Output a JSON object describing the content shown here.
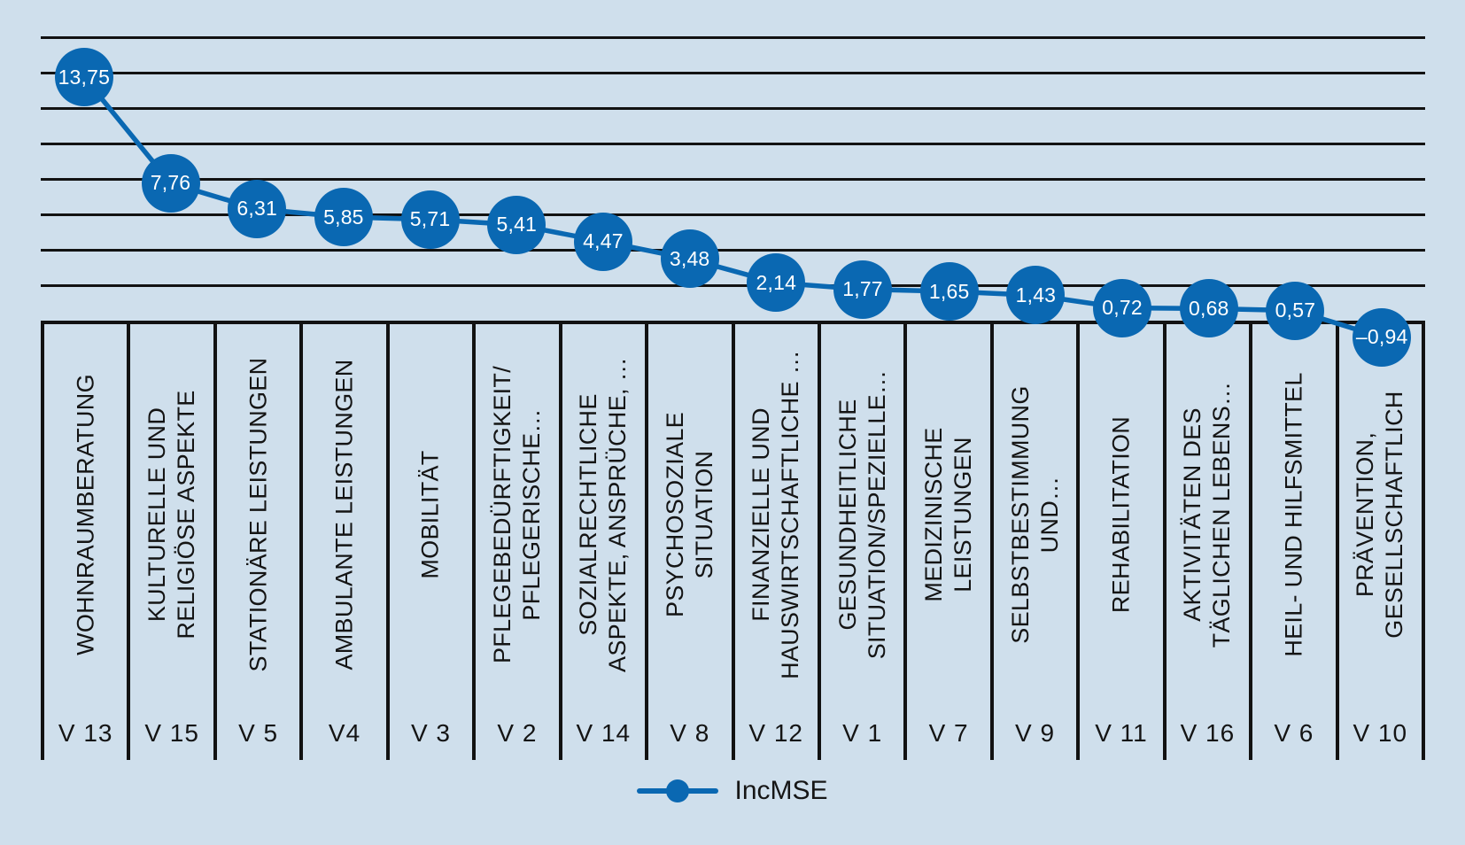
{
  "figure": {
    "background_color": "#cfdfec",
    "series_color": "#0a68b2",
    "grid_color": "#121212",
    "marker_text_color": "#ffffff"
  },
  "legend": {
    "label": "IncMSE",
    "position": "bottom-center"
  },
  "chart_data": {
    "type": "line",
    "title": "",
    "xlabel": "",
    "ylabel": "",
    "ylim": [
      0,
      16
    ],
    "gridline_step": 2,
    "grid": true,
    "legend_position": "bottom-center",
    "marker_style": "filled-circle-with-value-label",
    "decimal_separator": ",",
    "series": [
      {
        "name": "IncMSE",
        "values": [
          13.75,
          7.76,
          6.31,
          5.85,
          5.71,
          5.41,
          4.47,
          3.48,
          2.14,
          1.77,
          1.65,
          1.43,
          0.72,
          0.68,
          0.57,
          -0.94
        ]
      }
    ],
    "value_labels": [
      "13,75",
      "7,76",
      "6,31",
      "5,85",
      "5,71",
      "5,41",
      "4,47",
      "3,48",
      "2,14",
      "1,77",
      "1,65",
      "1,43",
      "0,72",
      "0,68",
      "0,57",
      "–0,94"
    ],
    "categories": [
      "WOHNRAUMBERATUNG",
      "KULTURELLE UND\nRELIGIÖSE ASPEKTE",
      "STATIONÄRE LEISTUNGEN",
      "AMBULANTE LEISTUNGEN",
      "MOBILITÄT",
      "PFLEGEBEDÜRFTIGKEIT/\nPFLEGERISCHE…",
      "SOZIALRECHTLICHE\nASPEKTE, ANSPRÜCHE, …",
      "PSYCHOSOZIALE\nSITUATION",
      "FINANZIELLE UND\nHAUSWIRTSCHAFTLICHE …",
      "GESUNDHEITLICHE\nSITUATION/SPEZIELLE…",
      "MEDIZINISCHE\nLEISTUNGEN",
      "SELBSTBESTIMMUNG\nUND…",
      "REHABILITATION",
      "AKTIVITÄTEN DES\nTÄGLICHEN LEBENS…",
      "HEIL- UND HILFSMITTEL",
      "PRÄVENTION,\nGESELLSCHAFTLICH"
    ],
    "category_codes": [
      "V 13",
      "V 15",
      "V 5",
      "V4",
      "V 3",
      "V 2",
      "V 14",
      "V 8",
      "V 12",
      "V 1",
      "V 7",
      "V 9",
      "V 11",
      "V 16",
      "V 6",
      "V 10"
    ]
  }
}
